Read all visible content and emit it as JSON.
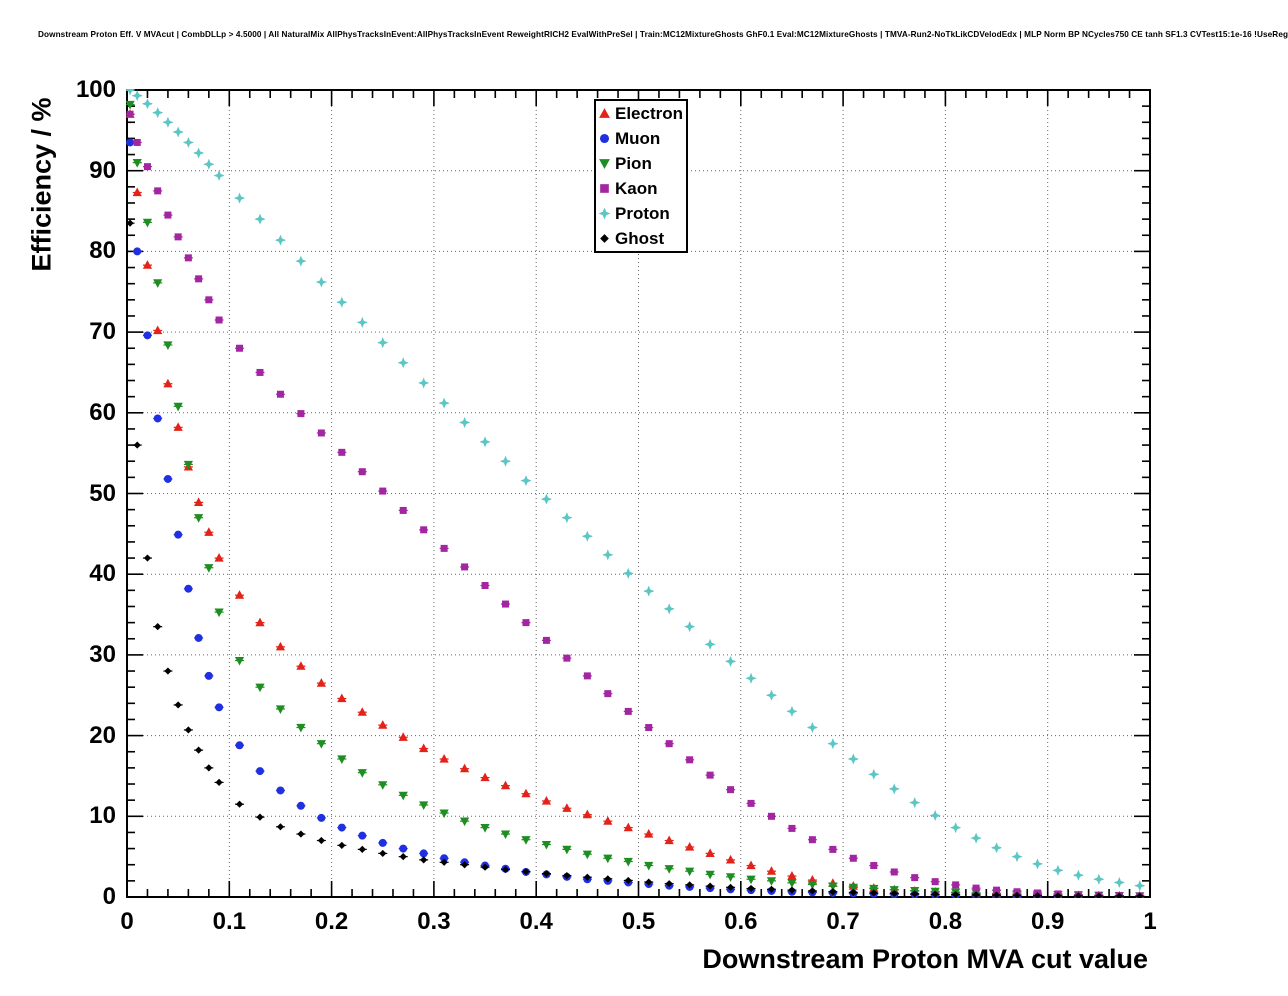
{
  "title": "Downstream Proton Eff. V MVAcut | CombDLLp > 4.5000 | All NaturalMix AllPhysTracksInEvent:AllPhysTracksInEvent ReweightRICH2 EvalWithPreSel | Train:MC12MixtureGhosts GhF0.1 Eval:MC12MixtureGhosts | TMVA-Run2-NoTkLikCDVelodEdx | MLP Norm BP NCycles750 CE tanh SF1.3 CVTest15:1e-16 !UseReg",
  "chart_data": {
    "type": "scatter",
    "title": "Downstream Proton Eff. V MVAcut",
    "xlabel": "Downstream Proton MVA cut value",
    "ylabel": "Efficiency / %",
    "xlim": [
      0,
      1
    ],
    "ylim": [
      0,
      100
    ],
    "grid": "dotted",
    "legend_position": "top-center",
    "x_ticks": {
      "values": [
        0,
        0.1,
        0.2,
        0.3,
        0.4,
        0.5,
        0.6,
        0.7,
        0.8,
        0.9,
        1
      ],
      "labels": [
        "0",
        "0.1",
        "0.2",
        "0.3",
        "0.4",
        "0.5",
        "0.6",
        "0.7",
        "0.8",
        "0.9",
        "1"
      ]
    },
    "y_ticks": {
      "values": [
        0,
        10,
        20,
        30,
        40,
        50,
        60,
        70,
        80,
        90,
        100
      ],
      "labels": [
        "0",
        "10",
        "20",
        "30",
        "40",
        "50",
        "60",
        "70",
        "80",
        "90",
        "100"
      ]
    },
    "x": [
      0.003,
      0.01,
      0.02,
      0.03,
      0.04,
      0.05,
      0.06,
      0.07,
      0.08,
      0.09,
      0.11,
      0.13,
      0.15,
      0.17,
      0.19,
      0.21,
      0.23,
      0.25,
      0.27,
      0.29,
      0.31,
      0.33,
      0.35,
      0.37,
      0.39,
      0.41,
      0.43,
      0.45,
      0.47,
      0.49,
      0.51,
      0.53,
      0.55,
      0.57,
      0.59,
      0.61,
      0.63,
      0.65,
      0.67,
      0.69,
      0.71,
      0.73,
      0.75,
      0.77,
      0.79,
      0.81,
      0.83,
      0.85,
      0.87,
      0.89,
      0.91,
      0.93,
      0.95,
      0.97,
      0.99
    ],
    "series": [
      {
        "name": "Electron",
        "marker": "triangle-up",
        "color": "#e32219",
        "values": [
          97,
          87.3,
          78.3,
          70.2,
          63.6,
          58.2,
          53.3,
          48.9,
          45.2,
          42,
          37.4,
          34,
          31,
          28.6,
          26.5,
          24.6,
          22.9,
          21.3,
          19.8,
          18.4,
          17.1,
          15.9,
          14.8,
          13.8,
          12.8,
          11.9,
          11,
          10.2,
          9.4,
          8.6,
          7.8,
          7,
          6.2,
          5.4,
          4.6,
          3.9,
          3.2,
          2.6,
          2.1,
          1.7,
          1.35,
          1.1,
          0.9,
          0.75,
          0.6,
          0.5,
          0.42,
          0.36,
          0.3,
          0.26,
          0.22,
          0.19,
          0.16,
          0.14,
          0.12
        ]
      },
      {
        "name": "Muon",
        "marker": "circle",
        "color": "#2030e0",
        "values": [
          93.5,
          80,
          69.6,
          59.3,
          51.8,
          44.9,
          38.2,
          32.1,
          27.4,
          23.5,
          18.8,
          15.6,
          13.2,
          11.3,
          9.8,
          8.6,
          7.6,
          6.7,
          6,
          5.4,
          4.8,
          4.3,
          3.9,
          3.5,
          3.1,
          2.8,
          2.5,
          2.2,
          2,
          1.8,
          1.6,
          1.4,
          1.25,
          1.1,
          0.95,
          0.85,
          0.75,
          0.65,
          0.57,
          0.5,
          0.44,
          0.39,
          0.34,
          0.3,
          0.26,
          0.23,
          0.2,
          0.18,
          0.16,
          0.14,
          0.12,
          0.11,
          0.09,
          0.08,
          0.07
        ]
      },
      {
        "name": "Pion",
        "marker": "triangle-down",
        "color": "#1e8e22",
        "values": [
          98.2,
          91,
          83.6,
          76.1,
          68.4,
          60.8,
          53.6,
          47,
          40.8,
          35.3,
          29.3,
          26,
          23.3,
          21,
          19,
          17.1,
          15.4,
          13.9,
          12.6,
          11.4,
          10.4,
          9.4,
          8.6,
          7.8,
          7.1,
          6.5,
          5.9,
          5.3,
          4.8,
          4.4,
          3.9,
          3.5,
          3.2,
          2.8,
          2.5,
          2.2,
          2,
          1.75,
          1.55,
          1.35,
          1.2,
          1.05,
          0.9,
          0.8,
          0.7,
          0.6,
          0.52,
          0.45,
          0.39,
          0.34,
          0.29,
          0.25,
          0.21,
          0.18,
          0.15
        ]
      },
      {
        "name": "Kaon",
        "marker": "square",
        "color": "#a226a2",
        "values": [
          97,
          93.5,
          90.5,
          87.5,
          84.5,
          81.8,
          79.2,
          76.6,
          74,
          71.5,
          68,
          65,
          62.3,
          59.9,
          57.5,
          55.1,
          52.7,
          50.3,
          47.9,
          45.5,
          43.2,
          40.9,
          38.6,
          36.3,
          34,
          31.8,
          29.6,
          27.4,
          25.2,
          23,
          21,
          19,
          17,
          15.1,
          13.3,
          11.6,
          10,
          8.5,
          7.1,
          5.9,
          4.8,
          3.9,
          3.1,
          2.4,
          1.9,
          1.5,
          1.1,
          0.85,
          0.65,
          0.5,
          0.38,
          0.28,
          0.22,
          0.17,
          0.13
        ]
      },
      {
        "name": "Proton",
        "marker": "star",
        "color": "#5cc6c4",
        "values": [
          100,
          99.3,
          98.3,
          97.2,
          96,
          94.8,
          93.5,
          92.2,
          90.8,
          89.4,
          86.6,
          84,
          81.4,
          78.8,
          76.2,
          73.7,
          71.2,
          68.7,
          66.2,
          63.7,
          61.2,
          58.8,
          56.4,
          54,
          51.6,
          49.3,
          47,
          44.7,
          42.4,
          40.1,
          37.9,
          35.7,
          33.5,
          31.3,
          29.2,
          27.1,
          25,
          23,
          21,
          19,
          17.1,
          15.2,
          13.4,
          11.7,
          10.1,
          8.6,
          7.3,
          6.1,
          5,
          4.1,
          3.3,
          2.7,
          2.2,
          1.8,
          1.4
        ]
      },
      {
        "name": "Ghost",
        "marker": "diamond",
        "color": "#000000",
        "values": [
          83.5,
          56,
          42,
          33.5,
          28,
          23.8,
          20.7,
          18.2,
          16,
          14.2,
          11.5,
          9.9,
          8.7,
          7.8,
          7,
          6.4,
          5.9,
          5.4,
          5,
          4.6,
          4.3,
          4,
          3.7,
          3.4,
          3.15,
          2.9,
          2.65,
          2.45,
          2.25,
          2.05,
          1.85,
          1.65,
          1.5,
          1.35,
          1.2,
          1.05,
          0.95,
          0.85,
          0.75,
          0.65,
          0.57,
          0.5,
          0.44,
          0.39,
          0.34,
          0.3,
          0.26,
          0.23,
          0.2,
          0.17,
          0.15,
          0.13,
          0.11,
          0.1,
          0.09
        ]
      }
    ]
  }
}
